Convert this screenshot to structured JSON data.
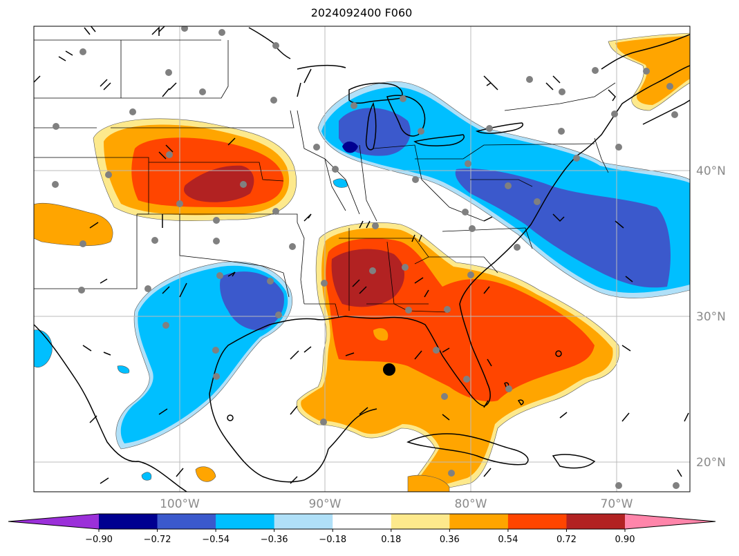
{
  "title": "2024092400 F060",
  "map": {
    "projection": "cylindrical",
    "lon_range": [
      -110,
      -65.5
    ],
    "lat_range": [
      18,
      50
    ],
    "gridlines": true,
    "lat_labels": [
      "40°N",
      "30°N",
      "20°N"
    ],
    "lon_labels": [
      "100°W",
      "90°W",
      "80°W",
      "70°W"
    ],
    "overlays": [
      "coastlines",
      "state borders",
      "country borders",
      "wind barbs",
      "station markers (gray)",
      "storm center marker (black)"
    ]
  },
  "colorbar": {
    "orientation": "horizontal",
    "extend": "both",
    "tick_labels": [
      "−0.90",
      "−0.72",
      "−0.54",
      "−0.36",
      "−0.18",
      "0.18",
      "0.36",
      "0.54",
      "0.72",
      "0.90"
    ],
    "colors": [
      "#9b30d9",
      "#000090",
      "#3b59cc",
      "#00bfff",
      "#b0e0f8",
      "#ffffff",
      "#fde98c",
      "#ffa500",
      "#ff4500",
      "#b22222",
      "#ff85aa"
    ]
  },
  "fill_colors": {
    "light_blue": "#b0e0f8",
    "blue": "#00bfff",
    "royal_blue": "#3b59cc",
    "navy": "#000090",
    "light_yellow": "#fde98c",
    "orange": "#ffa500",
    "orange_red": "#ff4500",
    "firebrick": "#b22222"
  }
}
